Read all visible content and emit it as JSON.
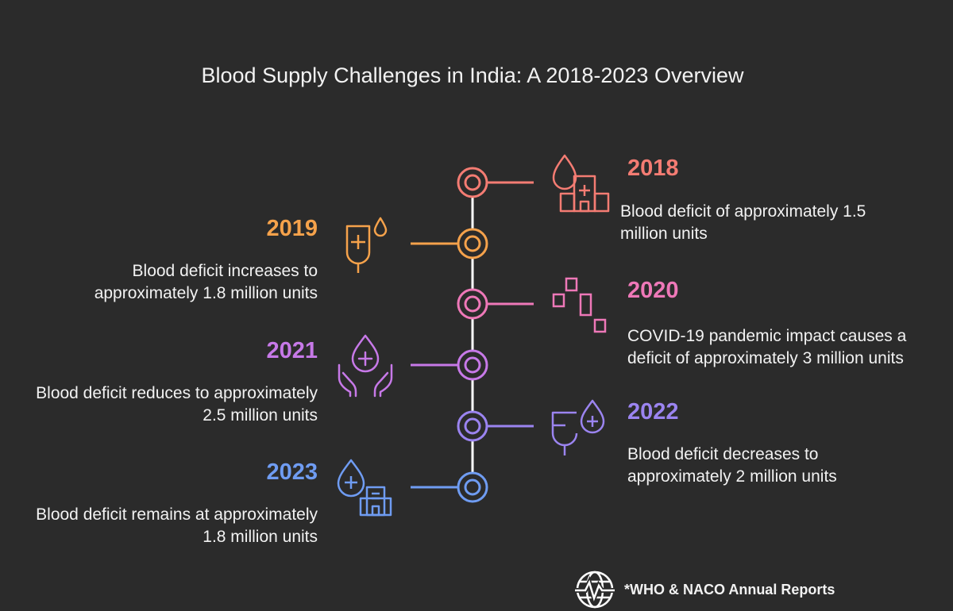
{
  "title": "Blood Supply Challenges in India: A 2018-2023 Overview",
  "colors": {
    "2018": "#f47c73",
    "2019": "#f5a24b",
    "2020": "#ee78b8",
    "2021": "#c779e8",
    "2022": "#9b84f0",
    "2023": "#6f9cf2",
    "spine": "#ffffff",
    "background": "#2b2b2b"
  },
  "events": [
    {
      "year": "2018",
      "text": "Blood deficit of approximately 1.5 million units",
      "icon": "blood-drop-hospital-icon"
    },
    {
      "year": "2019",
      "text": "Blood deficit increases to approximately 1.8 million units",
      "icon": "iv-blood-bag-icon"
    },
    {
      "year": "2020",
      "text": "COVID-19 pandemic impact causes a deficit of approximately 3 million units",
      "icon": "scattered-blocks-icon"
    },
    {
      "year": "2021",
      "text": "Blood deficit reduces to approximately 2.5 million units",
      "icon": "hands-holding-blood-drop-icon"
    },
    {
      "year": "2022",
      "text": "Blood deficit decreases to approximately 2 million units",
      "icon": "blood-bag-drop-icon"
    },
    {
      "year": "2023",
      "text": "Blood deficit remains at approximately 1.8 million units",
      "icon": "blood-drop-building-icon"
    }
  ],
  "footer": {
    "source": "*WHO & NACO Annual Reports",
    "icon": "globe-pulse-icon"
  }
}
